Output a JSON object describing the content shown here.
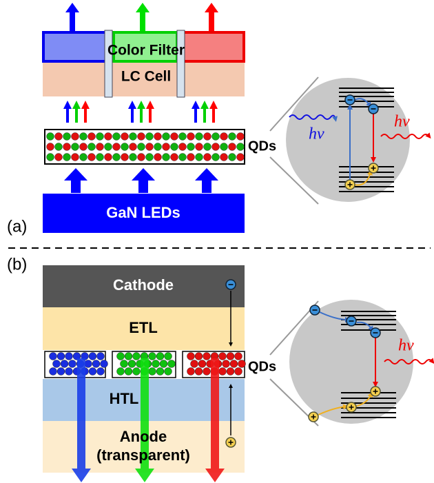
{
  "panel_a": {
    "label": "(a)",
    "color_filter": "Color Filter",
    "lc_cell": "LC Cell",
    "qds": "QDs",
    "light_source": "GaN LEDs",
    "inset": {
      "absorbed": "hv",
      "emitted": "hv"
    }
  },
  "panel_b": {
    "label": "(b)",
    "cathode": "Cathode",
    "etl": "ETL",
    "qds": "QDs",
    "htl": "HTL",
    "anode": [
      "Anode",
      "(transparent)"
    ],
    "inset": {
      "emitted": "hv"
    }
  }
}
